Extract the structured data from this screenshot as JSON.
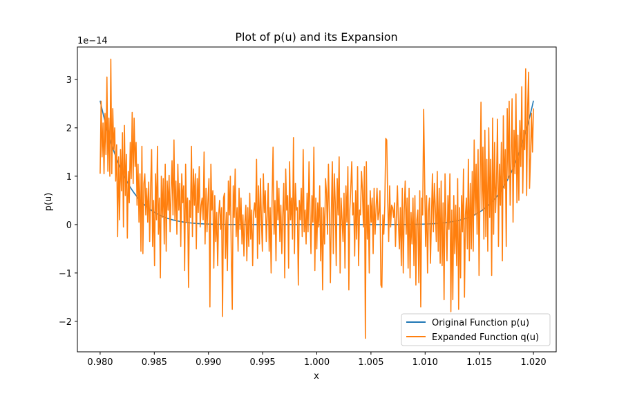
{
  "chart_data": {
    "type": "line",
    "title": "Plot of p(u) and its Expansion",
    "xlabel": "x",
    "ylabel": "p(u)",
    "y_offset_label": "1e−14",
    "xlim": [
      0.9779,
      1.0221
    ],
    "ylim": [
      -2.63,
      3.67
    ],
    "x_ticks": [
      0.98,
      0.985,
      0.99,
      0.995,
      1.0,
      1.005,
      1.01,
      1.015,
      1.02
    ],
    "x_tick_labels": [
      "0.980",
      "0.985",
      "0.990",
      "0.995",
      "1.000",
      "1.005",
      "1.010",
      "1.015",
      "1.020"
    ],
    "y_ticks": [
      -2,
      -1,
      0,
      1,
      2,
      3
    ],
    "y_tick_labels": [
      "−2",
      "−1",
      "0",
      "1",
      "2",
      "3"
    ],
    "grid": false,
    "legend_position": "lower-right",
    "series": [
      {
        "name": "Original Function p(u)",
        "color": "#1f77b4",
        "function": "(x-1)^8",
        "scale_exponent": -14,
        "x_start": 0.98,
        "x_end": 1.02,
        "points": 500
      },
      {
        "name": "Expanded Function q(u)",
        "color": "#ff7f0e",
        "description_values": "noisy evaluation of expanded polynomial; values in units of 1e-14",
        "x_start": 0.98,
        "x_end": 1.02,
        "values": [
          1.05,
          2.55,
          1.4,
          2.1,
          1.05,
          2.3,
          1.45,
          3.05,
          1.1,
          2.2,
          1.0,
          3.42,
          1.05,
          2.4,
          1.55,
          2.0,
          0.9,
          1.65,
          -0.25,
          1.4,
          0.1,
          1.55,
          0.7,
          1.9,
          -0.05,
          2.05,
          0.6,
          1.45,
          -0.28,
          1.1,
          0.45,
          1.7,
          0.95,
          2.32,
          0.85,
          2.2,
          1.2,
          1.7,
          0.4,
          1.25,
          0.05,
          1.05,
          -0.55,
          1.62,
          -0.6,
          0.85,
          1.05,
          0.2,
          0.75,
          0.05,
          0.88,
          -0.35,
          0.8,
          1.55,
          -0.45,
          0.5,
          -0.85,
          1.05,
          0.1,
          1.62,
          -0.2,
          0.55,
          -1.1,
          1.0,
          0.15,
          0.95,
          -0.4,
          1.25,
          -0.55,
          0.9,
          0.3,
          1.02,
          -0.15,
          0.7,
          1.32,
          0.2,
          1.75,
          0.1,
          0.9,
          -0.2,
          1.25,
          0.3,
          0.85,
          -0.45,
          1.05,
          0.45,
          0.8,
          -0.95,
          1.25,
          0.05,
          0.55,
          -1.3,
          0.5,
          0.15,
          1.62,
          -0.25,
          1.15,
          0.4,
          1.05,
          -0.5,
          0.95,
          0.25,
          1.2,
          -0.05,
          0.4,
          0.55,
          0.1,
          1.5,
          -0.4,
          0.75,
          -0.15,
          0.5,
          0.95,
          -1.7,
          1.25,
          0.3,
          0.7,
          -0.9,
          0.6,
          -0.35,
          0.25,
          -0.85,
          0.2,
          0.5,
          -0.1,
          0.35,
          -1.9,
          0.55,
          0.65,
          -0.7,
          0.25,
          -0.95,
          0.9,
          0.2,
          1.0,
          -0.6,
          -1.75,
          0.8,
          0.15,
          1.15,
          -0.25,
          0.35,
          -0.55,
          0.75,
          -0.1,
          0.55,
          -0.4,
          0.2,
          -0.65,
          0.05,
          0.4,
          -0.75,
          0.35,
          -0.45,
          0.65,
          -0.3,
          0.3,
          -0.85,
          0.25,
          0.45,
          0.15,
          1.35,
          -0.7,
          0.8,
          -0.4,
          0.95,
          0.1,
          -0.55,
          1.05,
          0.25,
          0.7,
          -0.35,
          0.2,
          0.85,
          -0.55,
          0.35,
          -1.0,
          0.55,
          1.6,
          -0.2,
          0.5,
          -0.75,
          0.9,
          0.1,
          0.75,
          -0.35,
          0.4,
          -0.6,
          0.2,
          0.85,
          -1.1,
          1.15,
          0.3,
          0.6,
          -0.9,
          1.3,
          0.1,
          0.55,
          -0.3,
          1.8,
          -0.6,
          0.85,
          0.3,
          0.35,
          -1.25,
          0.5,
          0.1,
          0.75,
          -0.25,
          1.55,
          -0.15,
          0.3,
          -0.4,
          0.65,
          -0.15,
          1.3,
          0.25,
          -0.6,
          0.6,
          0.05,
          1.6,
          -0.95,
          0.55,
          -0.5,
          0.45,
          -0.05,
          0.8,
          -0.75,
          0.35,
          -1.35,
          0.35,
          -0.4,
          0.95,
          0.65,
          -0.2,
          1.25,
          0.25,
          -1.2,
          0.25,
          1.3,
          -0.6,
          1.05,
          0.45,
          -0.85,
          0.95,
          0.2,
          1.4,
          -1.0,
          0.55,
          0.1,
          -0.35,
          0.65,
          -0.9,
          0.8,
          0.05,
          1.2,
          -1.35,
          0.3,
          0.75,
          1.3,
          0.2,
          0.45,
          -0.65,
          0.7,
          -0.3,
          1.2,
          -0.85,
          0.3,
          0.2,
          1.1,
          0.7,
          -0.05,
          1.2,
          -2.35,
          1.3,
          -0.3,
          0.4,
          -1.0,
          0.7,
          0.05,
          0.55,
          -0.6,
          0.75,
          -0.2,
          0.35,
          0.75,
          0.1,
          0.25,
          0.7,
          -1.25,
          -1.3,
          0.2,
          -0.2,
          0.4,
          1.78,
          1.75,
          0.5,
          -0.35,
          0.8,
          -0.05,
          0.4,
          0.35,
          0.15,
          0.45,
          -0.45,
          0.2,
          0.8,
          0.05,
          -0.5,
          0.35,
          -0.85,
          0.75,
          -1.0,
          0.3,
          0.9,
          -0.2,
          0.55,
          -0.9,
          0.75,
          -1.1,
          0.25,
          -0.4,
          0.55,
          -0.85,
          0.6,
          -1.25,
          0.1,
          0.3,
          -1.2,
          0.7,
          -1.7,
          0.55,
          0.2,
          2.38,
          0.95,
          -0.45,
          0.6,
          -1.0,
          0.3,
          0.55,
          -0.8,
          0.1,
          1.05,
          -0.15,
          0.85,
          0.35,
          -0.35,
          1.1,
          -0.55,
          0.75,
          -0.8,
          0.9,
          -0.85,
          0.45,
          -1.55,
          1.05,
          0.05,
          -0.75,
          0.6,
          -0.1,
          1.05,
          -1.8,
          0.3,
          -1.55,
          0.6,
          -0.6,
          0.4,
          -0.85,
          0.95,
          -1.75,
          0.35,
          -1.1,
          0.6,
          -0.15,
          1.15,
          -1.5,
          0.2,
          0.55,
          -0.5,
          1.35,
          -0.75,
          0.85,
          -0.5,
          1.1,
          -0.55,
          1.75,
          0.2,
          1.25,
          -0.2,
          1.55,
          -1.05,
          0.7,
          2.53,
          0.3,
          1.6,
          -0.3,
          1.95,
          -0.25,
          1.35,
          -0.55,
          2.0,
          0.15,
          1.35,
          -1.05,
          2.2,
          -0.2,
          1.7,
          0.25,
          0.9,
          2.18,
          -0.45,
          1.25,
          0.4,
          1.7,
          -0.75,
          2.25,
          0.75,
          1.55,
          -0.45,
          2.4,
          0.95,
          2.55,
          0.4,
          1.3,
          2.6,
          0.05,
          1.95,
          1.05,
          2.7,
          0.45,
          1.85,
          0.5,
          2.15,
          1.2,
          2.85,
          0.65,
          1.95,
          1.55,
          3.22,
          0.6,
          2.4,
          3.15,
          0.75,
          1.4,
          2.3,
          1.5,
          2.4
        ]
      }
    ]
  }
}
